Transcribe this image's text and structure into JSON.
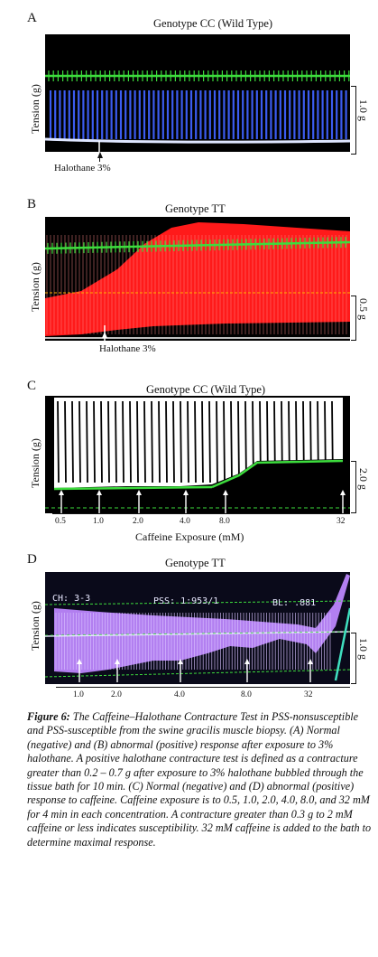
{
  "panels": {
    "a": {
      "letter": "A",
      "title": "Genotype CC (Wild Type)",
      "ylabel": "Tension (g)",
      "scale": "1.0 g",
      "annotation": "Halothane 3%"
    },
    "b": {
      "letter": "B",
      "title": "Genotype TT",
      "ylabel": "Tension (g)",
      "scale": "0.5 g",
      "annotation": "Halothane 3%"
    },
    "c": {
      "letter": "C",
      "title": "Genotype CC (Wild Type)",
      "ylabel": "Tension (g)",
      "scale": "2.0 g",
      "xlabel": "Caffeine Exposure (mM)",
      "ticks": [
        "0.5",
        "1.0",
        "2.0",
        "4.0",
        "8.0",
        "32"
      ]
    },
    "d": {
      "letter": "D",
      "title": "Genotype TT",
      "ylabel": "Tension (g)",
      "scale": "1.0 g",
      "ticks": [
        "1.0",
        "2.0",
        "4.0",
        "8.0",
        "32"
      ],
      "screen_readout": {
        "ch": "CH: 3-3",
        "pss": "PSS: 1:953/1",
        "bl": "BL: .881"
      }
    }
  },
  "caption": {
    "label": "Figure 6:",
    "text": " The Caffeine–Halothane Contracture Test in PSS-nonsusceptible and PSS-susceptible from the swine gracilis muscle biopsy. (A) Normal (negative) and (B) abnormal (positive) response after exposure to 3% halothane. A positive halothane contracture test is defined as a contracture greater than 0.2 – 0.7 g after exposure to 3% halothane bubbled through the tissue bath for 10 min. (C) Normal (negative) and (D) abnormal (positive) response to caffeine. Caffeine exposure is to 0.5, 1.0, 2.0, 4.0, 8.0, and 32 mM for 4 min in each concentration. A contracture greater than 0.3 g to 2 mM caffeine or less indicates susceptibility. 32 mM caffeine is added to the bath to determine maximal response."
  },
  "colors": {
    "screen_bg": "#000000",
    "trace_blue": "#3b5cf0",
    "trace_red": "#ff1a1a",
    "trace_white": "#ffffff",
    "trace_purple": "#b27ff0",
    "baseline_green": "#3ddc3d",
    "arrow_white": "#ffffff"
  }
}
